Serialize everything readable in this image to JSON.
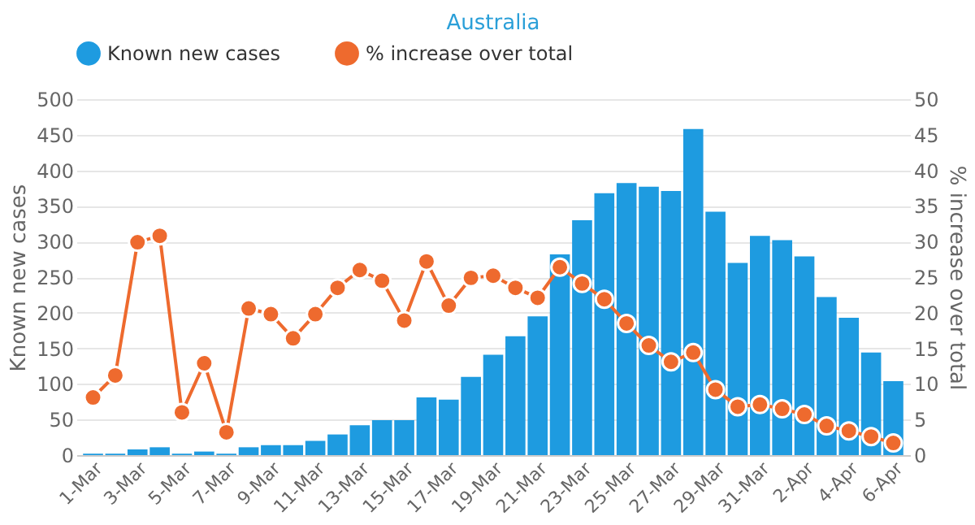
{
  "chart_data": {
    "type": "bar",
    "title": "Australia",
    "ylabel": "Known new cases",
    "y2label": "% increase over total",
    "categories": [
      "1-Mar",
      null,
      "3-Mar",
      null,
      "5-Mar",
      null,
      "7-Mar",
      null,
      "9-Mar",
      null,
      "11-Mar",
      null,
      "13-Mar",
      null,
      "15-Mar",
      null,
      "17-Mar",
      null,
      "19-Mar",
      null,
      "21-Mar",
      null,
      "23-Mar",
      null,
      "25-Mar",
      null,
      "27-Mar",
      null,
      "29-Mar",
      null,
      "31-Mar",
      null,
      "2-Apr",
      null,
      "4-Apr",
      null,
      "6-Apr"
    ],
    "series": [
      {
        "name": "Known new cases",
        "color": "#1e9be0",
        "values": [
          2,
          2,
          8,
          11,
          2,
          5,
          2,
          11,
          14,
          14,
          20,
          29,
          42,
          49,
          49,
          81,
          78,
          110,
          141,
          167,
          195,
          282,
          330,
          368,
          382,
          377,
          371,
          458,
          342,
          270,
          308,
          302,
          279,
          222,
          193,
          144,
          104
        ]
      },
      {
        "name": "% increase over total",
        "type": "line",
        "axis": "y2",
        "color": "#ee6a2e",
        "marker": "circle",
        "values": [
          8.1,
          11.2,
          29.9,
          30.8,
          6.0,
          12.9,
          3.2,
          20.6,
          19.8,
          16.4,
          19.8,
          23.5,
          26.0,
          24.5,
          18.9,
          27.2,
          21.0,
          24.9,
          25.2,
          23.5,
          22.1,
          26.4,
          24.1,
          21.9,
          18.5,
          15.4,
          13.1,
          14.4,
          9.2,
          6.8,
          7.1,
          6.5,
          5.7,
          4.1,
          3.4,
          2.6,
          1.7
        ]
      }
    ],
    "ylim": [
      0,
      500
    ],
    "yticks": [
      0,
      50,
      100,
      150,
      200,
      250,
      300,
      350,
      400,
      450,
      500
    ],
    "y2lim": [
      0,
      50
    ],
    "y2ticks": [
      0,
      5,
      10,
      15,
      20,
      25,
      30,
      35,
      40,
      45,
      50
    ],
    "grid": "y",
    "legend": "top"
  }
}
